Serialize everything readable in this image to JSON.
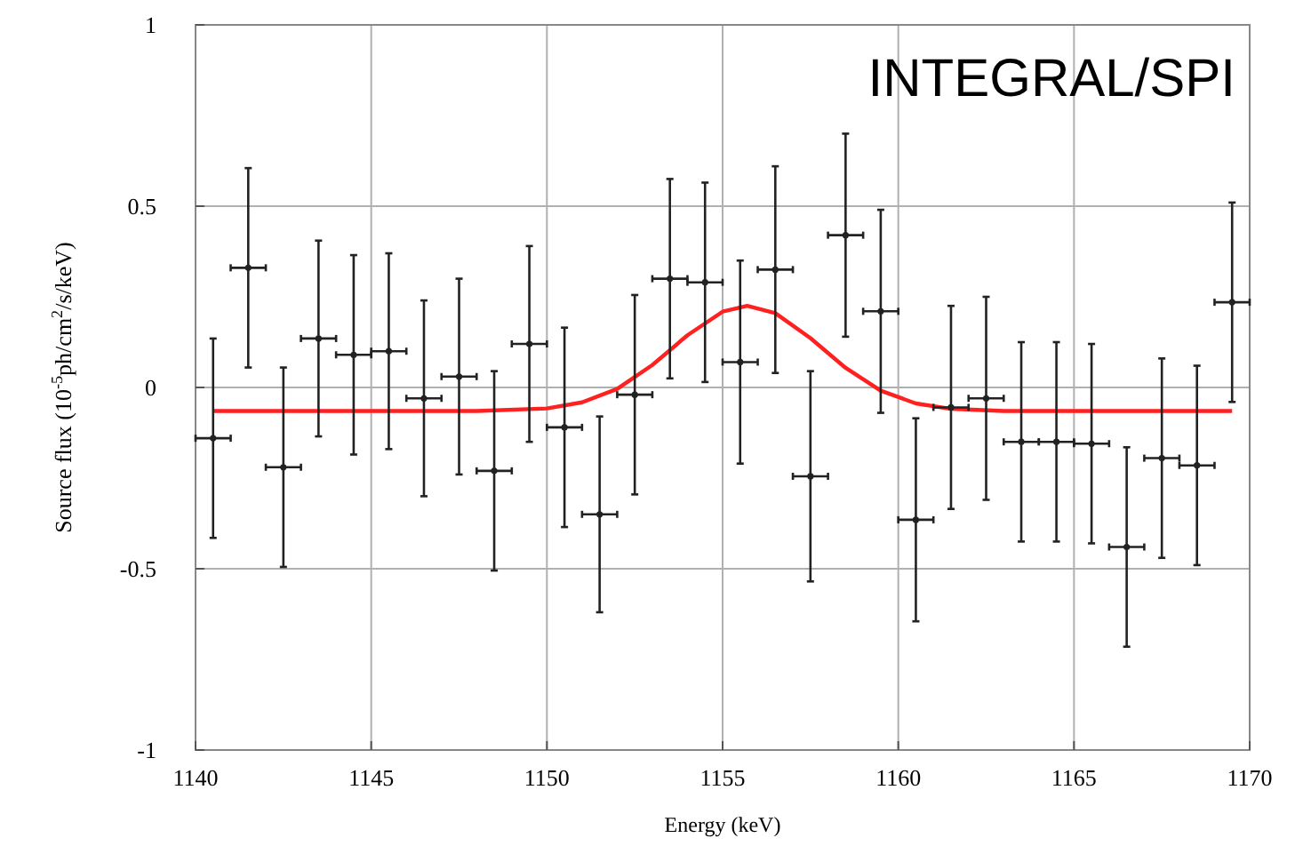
{
  "chart_data": {
    "type": "scatter",
    "xlabel": "Energy (keV)",
    "ylabel": "Source flux (10$^{-5}$ph/cm$^{2}$/s/keV)",
    "annotations": [
      "INTEGRAL/SPI"
    ],
    "xlim": [
      1140,
      1170
    ],
    "xticks": [
      1140,
      1145,
      1150,
      1155,
      1160,
      1165,
      1170
    ],
    "ylim": [
      -1,
      1
    ],
    "yticks": [
      -1,
      -0.5,
      0,
      0.5,
      1
    ],
    "grid": true,
    "series": [
      {
        "color": "#222222",
        "x": [
          1140.5,
          1141.5,
          1142.5,
          1143.5,
          1144.5,
          1145.5,
          1146.5,
          1147.5,
          1148.5,
          1149.5,
          1150.5,
          1151.5,
          1152.5,
          1153.5,
          1154.5,
          1155.5,
          1156.5,
          1157.5,
          1158.5,
          1159.5,
          1160.5,
          1161.5,
          1162.5,
          1163.5,
          1164.5,
          1165.5,
          1166.5,
          1167.5,
          1168.5,
          1169.5
        ],
        "values": [
          -0.14,
          0.33,
          -0.22,
          0.135,
          0.09,
          0.1,
          -0.03,
          0.03,
          -0.23,
          0.12,
          -0.11,
          -0.35,
          -0.02,
          0.3,
          0.29,
          0.07,
          0.325,
          -0.245,
          0.42,
          0.21,
          -0.365,
          -0.055,
          -0.03,
          -0.15,
          -0.15,
          -0.155,
          -0.44,
          -0.195,
          -0.215,
          0.235
        ],
        "errors": [
          0.275,
          0.275,
          0.275,
          0.27,
          0.275,
          0.27,
          0.27,
          0.27,
          0.275,
          0.27,
          0.275,
          0.27,
          0.275,
          0.275,
          0.275,
          0.28,
          0.285,
          0.29,
          0.28,
          0.28,
          0.28,
          0.28,
          0.28,
          0.275,
          0.275,
          0.275,
          0.275,
          0.275,
          0.275,
          0.275
        ],
        "xerrors": [
          0.5,
          0.5,
          0.5,
          0.5,
          0.5,
          0.5,
          0.5,
          0.5,
          0.5,
          0.5,
          0.5,
          0.5,
          0.5,
          0.5,
          0.5,
          0.5,
          0.5,
          0.5,
          0.5,
          0.5,
          0.5,
          0.5,
          0.5,
          0.5,
          0.5,
          0.5,
          0.5,
          0.5,
          0.5,
          0.5
        ]
      },
      {
        "type": "line",
        "color": "#ff2020",
        "x": [
          1140.5,
          1148,
          1150,
          1151,
          1152,
          1153,
          1154,
          1155,
          1155.7,
          1156.5,
          1157.5,
          1158.5,
          1159.5,
          1160.5,
          1161.5,
          1163,
          1169.5
        ],
        "values": [
          -0.065,
          -0.065,
          -0.058,
          -0.041,
          -0.004,
          0.062,
          0.144,
          0.209,
          0.225,
          0.205,
          0.136,
          0.054,
          -0.009,
          -0.044,
          -0.059,
          -0.065,
          -0.065
        ]
      }
    ]
  }
}
